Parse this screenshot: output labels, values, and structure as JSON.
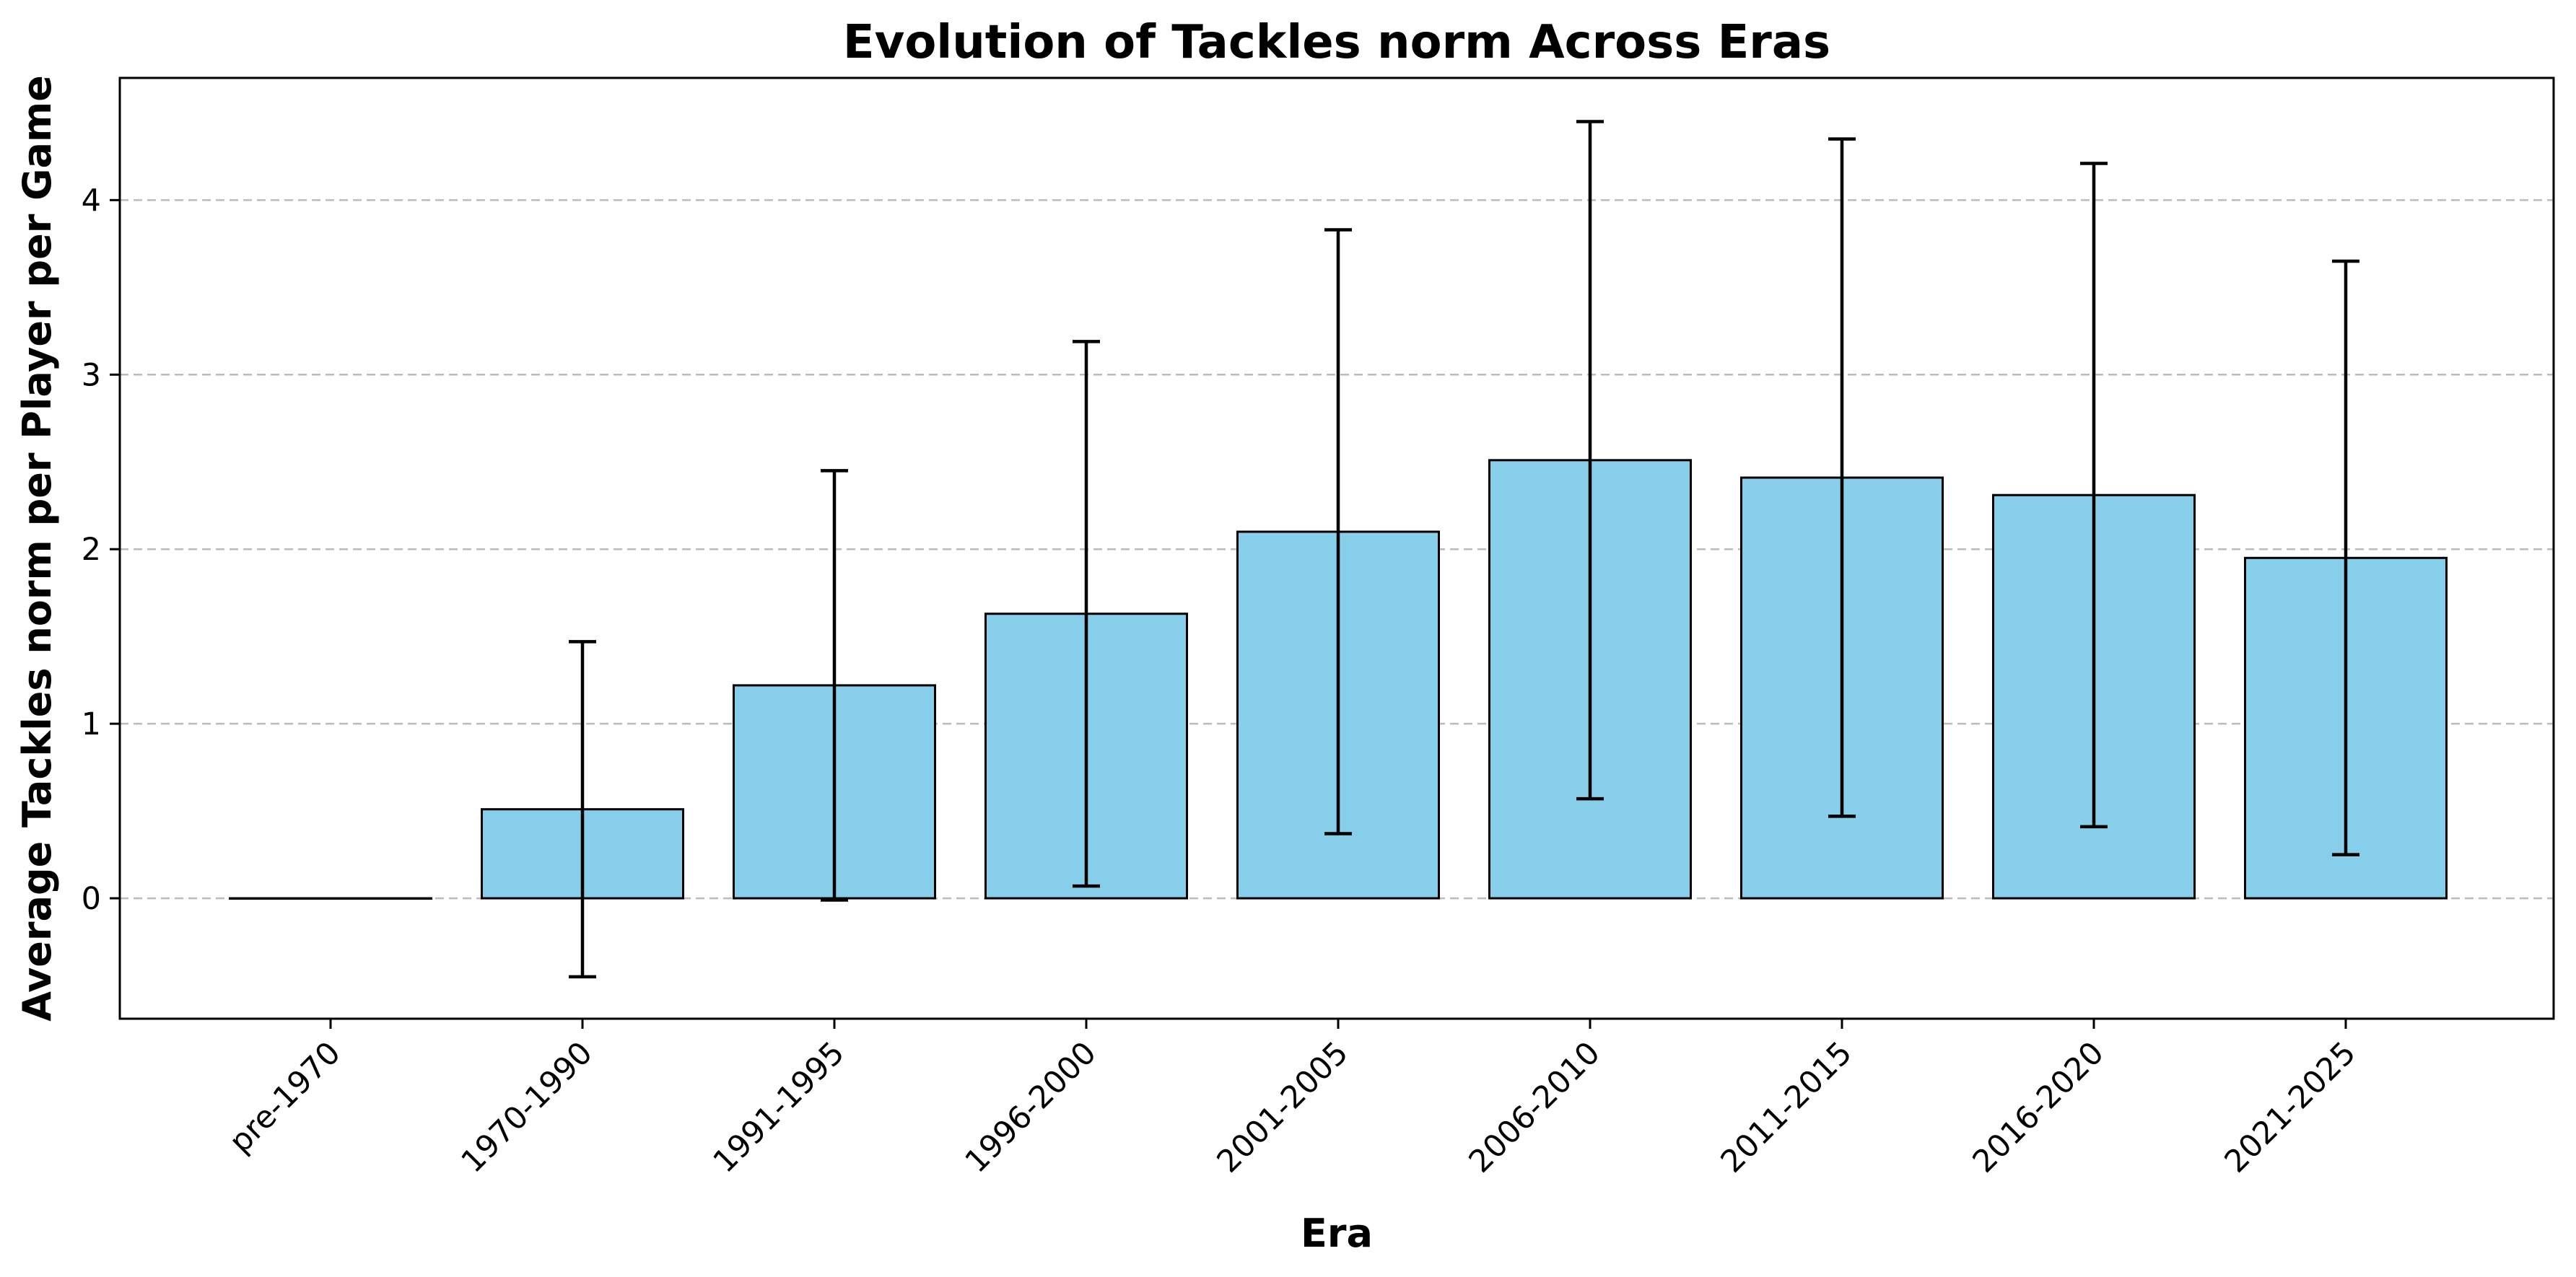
{
  "chart_data": {
    "type": "bar",
    "title": "Evolution of Tackles norm Across Eras",
    "xlabel": "Era",
    "ylabel": "Average Tackles norm per Player per Game",
    "categories": [
      "pre-1970",
      "1970-1990",
      "1991-1995",
      "1996-2000",
      "2001-2005",
      "2006-2010",
      "2011-2015",
      "2016-2020",
      "2021-2025"
    ],
    "values": [
      0.0,
      0.51,
      1.22,
      1.63,
      2.1,
      2.51,
      2.41,
      2.31,
      1.95
    ],
    "errors": [
      0.0,
      0.96,
      1.23,
      1.56,
      1.73,
      1.94,
      1.94,
      1.9,
      1.7
    ],
    "ylim": [
      -0.69,
      4.7
    ],
    "yticks": [
      0,
      1,
      2,
      3,
      4
    ],
    "grid": "y-dashed",
    "colors": {
      "bar": "#87ceeb",
      "edge": "#000000",
      "error": "#000000",
      "grid": "#bbbbbb"
    }
  }
}
